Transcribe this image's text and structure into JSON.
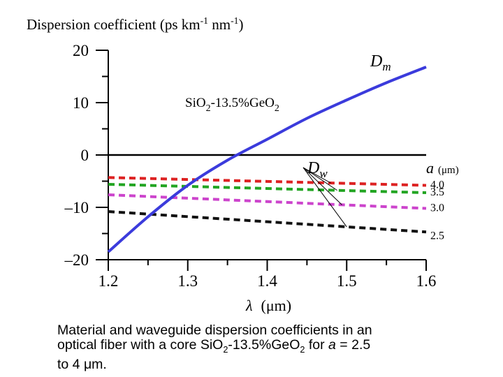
{
  "chart_data": {
    "type": "line",
    "title": "",
    "ylabel": {
      "text": "Dispersion coefficient (ps km",
      "sup1": "-1",
      "mid": " nm",
      "sup2": "-1",
      "end": ")"
    },
    "xlabel": {
      "symbol": "λ",
      "unit": "(μm)"
    },
    "xlim": [
      1.2,
      1.6
    ],
    "ylim": [
      -20,
      20
    ],
    "xticks": [
      {
        "value": 1.2,
        "label": "1.2"
      },
      {
        "value": 1.3,
        "label": "1.3"
      },
      {
        "value": 1.4,
        "label": "1.4"
      },
      {
        "value": 1.5,
        "label": "1.5"
      },
      {
        "value": 1.6,
        "label": "1.6"
      }
    ],
    "yticks": [
      {
        "value": 20,
        "label": "20"
      },
      {
        "value": 10,
        "label": "10"
      },
      {
        "value": 0,
        "label": "0"
      },
      {
        "value": -10,
        "label": "–10"
      },
      {
        "value": -20,
        "label": "–20"
      }
    ],
    "material_series": {
      "name": "D_m",
      "label_main": "D",
      "label_sub": "m",
      "color": "#3b3bdc",
      "x": [
        1.2,
        1.25,
        1.3,
        1.35,
        1.4,
        1.45,
        1.5,
        1.55,
        1.6
      ],
      "y": [
        -18.5,
        -11.8,
        -5.8,
        -1.0,
        3.0,
        7.0,
        10.5,
        13.8,
        16.8
      ]
    },
    "waveguide_series": [
      {
        "a": "4.0",
        "color": "#dd2222",
        "x": [
          1.2,
          1.6
        ],
        "y": [
          -4.3,
          -5.8
        ]
      },
      {
        "a": "3.5",
        "color": "#22a522",
        "x": [
          1.2,
          1.6
        ],
        "y": [
          -5.6,
          -7.2
        ]
      },
      {
        "a": "3.0",
        "color": "#cc44cc",
        "x": [
          1.2,
          1.6
        ],
        "y": [
          -7.6,
          -10.2
        ]
      },
      {
        "a": "2.5",
        "color": "#111111",
        "x": [
          1.2,
          1.6
        ],
        "y": [
          -10.8,
          -14.7
        ]
      }
    ],
    "annotations": {
      "material": {
        "prefix": "SiO",
        "sub1": "2",
        "middle": "-13.5%GeO",
        "sub2": "2"
      },
      "dw_label": {
        "main": "D",
        "sub": "w"
      },
      "a_header": {
        "symbol": "a",
        "unit": "(μm)"
      }
    }
  },
  "caption": {
    "line1": "Material and waveguide dispersion coefficients in an",
    "line2_pre": "optical fiber with a core SiO",
    "line2_sub1": "2",
    "line2_mid": "-13.5%GeO",
    "line2_sub2": "2",
    "line2_post": " for ",
    "line2_a": "a",
    "line2_end": " =  2.5",
    "line3": "to 4 μm."
  }
}
